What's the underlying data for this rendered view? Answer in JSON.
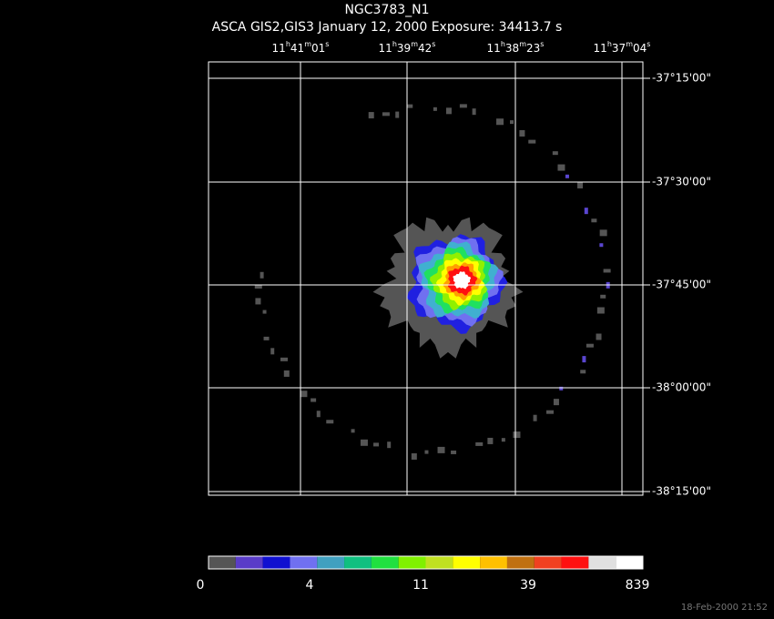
{
  "header": {
    "title": "NGC3783_N1",
    "subtitle": "ASCA GIS2,GIS3 January 12, 2000 Exposure: 34413.7 s"
  },
  "ra_labels": [
    "11h41m01s",
    "11h39m42s",
    "11h38m23s",
    "11h37m04s"
  ],
  "dec_labels": [
    "-37°15'00\"",
    "-37°30'00\"",
    "-37°45'00\"",
    "-38°00'00\"",
    "-38°15'00\""
  ],
  "colorbar": {
    "labels": [
      "0",
      "4",
      "11",
      "39",
      "839"
    ]
  },
  "timestamp": "18-Feb-2000 21:52"
}
